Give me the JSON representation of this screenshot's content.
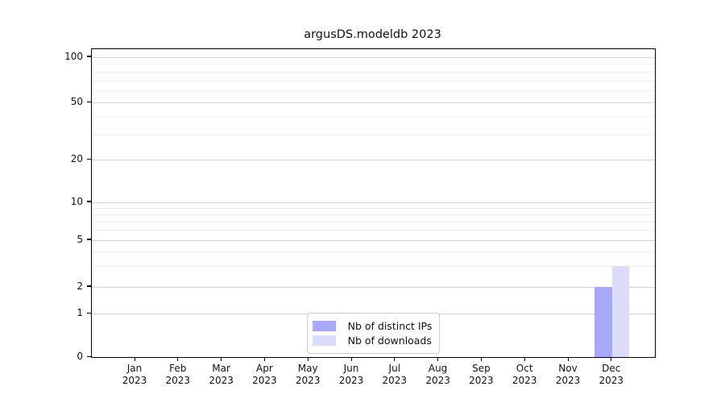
{
  "chart_data": {
    "type": "bar",
    "title": "argusDS.modeldb 2023",
    "categories": [
      "Jan 2023",
      "Feb 2023",
      "Mar 2023",
      "Apr 2023",
      "May 2023",
      "Jun 2023",
      "Jul 2023",
      "Aug 2023",
      "Sep 2023",
      "Oct 2023",
      "Nov 2023",
      "Dec 2023"
    ],
    "series": [
      {
        "name": "Nb of distinct IPs",
        "color": "#a8a8f8",
        "values": [
          0,
          0,
          0,
          0,
          0,
          0,
          0,
          0,
          0,
          0,
          0,
          2
        ]
      },
      {
        "name": "Nb of downloads",
        "color": "#dbdbfa",
        "values": [
          0,
          0,
          0,
          0,
          0,
          0,
          0,
          0,
          0,
          0,
          0,
          3
        ]
      }
    ],
    "xlabel": "",
    "ylabel": "",
    "yscale": "symlog",
    "ylim": [
      0,
      110
    ],
    "yticks_major": [
      0,
      1,
      2,
      5,
      10,
      20,
      50,
      100
    ],
    "yticks_minor": [
      3,
      4,
      6,
      7,
      8,
      9,
      30,
      40,
      60,
      70,
      80,
      90
    ],
    "grid": "on",
    "legend_position": "lower center"
  }
}
